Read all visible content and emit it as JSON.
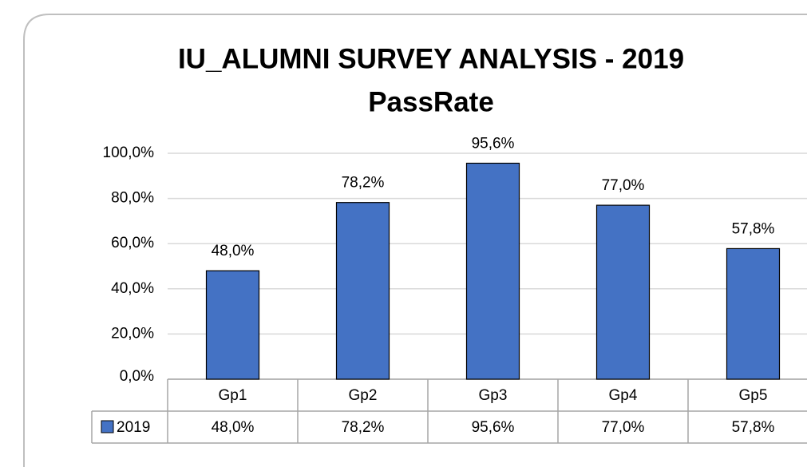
{
  "chart_data": {
    "type": "bar",
    "title": "IU_ALUMNI SURVEY ANALYSIS - 2019",
    "subtitle": "PassRate",
    "categories": [
      "Gp1",
      "Gp2",
      "Gp3",
      "Gp4",
      "Gp5"
    ],
    "series": [
      {
        "name": "2019",
        "color": "#4472c4",
        "values": [
          48.0,
          78.2,
          95.6,
          77.0,
          57.8
        ],
        "value_labels": [
          "48,0%",
          "78,2%",
          "95,6%",
          "77,0%",
          "57,8%"
        ]
      }
    ],
    "ylim": [
      0,
      100
    ],
    "yticks": [
      {
        "value": 0,
        "label": "0,0%"
      },
      {
        "value": 20,
        "label": "20,0%"
      },
      {
        "value": 40,
        "label": "40,0%"
      },
      {
        "value": 60,
        "label": "60,0%"
      },
      {
        "value": 80,
        "label": "80,0%"
      },
      {
        "value": 100,
        "label": "100,0%"
      }
    ],
    "grid": true
  }
}
